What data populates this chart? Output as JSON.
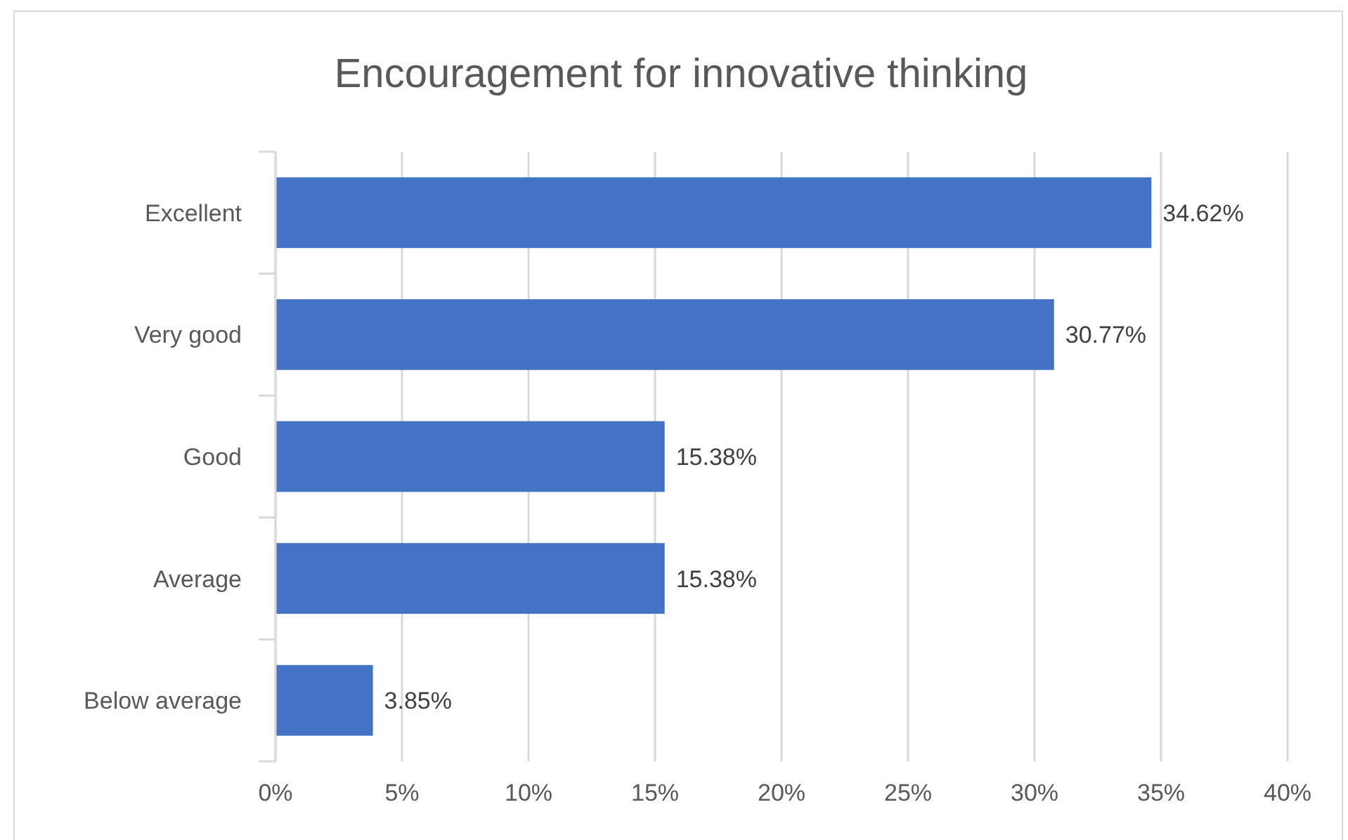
{
  "chart_data": {
    "type": "bar",
    "orientation": "horizontal",
    "title": "Encouragement for innovative thinking",
    "categories": [
      "Excellent",
      "Very good",
      "Good",
      "Average",
      "Below average"
    ],
    "values": [
      34.62,
      30.77,
      15.38,
      15.38,
      3.85
    ],
    "value_labels": [
      "34.62%",
      "30.77%",
      "15.38%",
      "15.38%",
      "3.85%"
    ],
    "color": "#4472c4",
    "xlim": [
      0,
      40
    ],
    "xticks": [
      {
        "value": 0,
        "label": "0%"
      },
      {
        "value": 5,
        "label": "5%"
      },
      {
        "value": 10,
        "label": "10%"
      },
      {
        "value": 15,
        "label": "15%"
      },
      {
        "value": 20,
        "label": "20%"
      },
      {
        "value": 25,
        "label": "25%"
      },
      {
        "value": 30,
        "label": "30%"
      },
      {
        "value": 35,
        "label": "35%"
      },
      {
        "value": 40,
        "label": "40%"
      }
    ],
    "grid": "x"
  }
}
